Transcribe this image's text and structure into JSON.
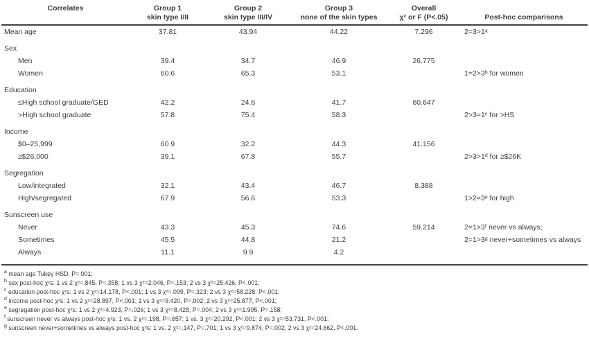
{
  "table": {
    "columns": [
      {
        "line1": "Correlates",
        "line2": ""
      },
      {
        "line1": "Group 1",
        "line2": "skin type I/II"
      },
      {
        "line1": "Group 2",
        "line2": "skin type III/IV"
      },
      {
        "line1": "Group 3",
        "line2": "none of the skin types"
      },
      {
        "line1": "Overall",
        "line2": "χ² or F (P<.05)"
      },
      {
        "line1": "",
        "line2": "Post-hoc comparisons"
      }
    ],
    "rows": [
      {
        "type": "data",
        "indent": 0,
        "label": "Mean age",
        "g1": "37.81",
        "g2": "43.94",
        "g3": "44.22",
        "overall": "7.296",
        "posthoc": "2=3>1ᵃ"
      },
      {
        "type": "section",
        "indent": 0,
        "label": "Sex",
        "g1": "",
        "g2": "",
        "g3": "",
        "overall": "",
        "posthoc": ""
      },
      {
        "type": "data",
        "indent": 1,
        "label": "Men",
        "g1": "39.4",
        "g2": "34.7",
        "g3": "46.9",
        "overall": "26.775",
        "posthoc": ""
      },
      {
        "type": "data",
        "indent": 1,
        "label": "Women",
        "g1": "60.6",
        "g2": "65.3",
        "g3": "53.1",
        "overall": "",
        "posthoc": "1=2>3ᵇ for women"
      },
      {
        "type": "section",
        "indent": 0,
        "label": "Education",
        "g1": "",
        "g2": "",
        "g3": "",
        "overall": "",
        "posthoc": ""
      },
      {
        "type": "data",
        "indent": 1,
        "label": "≤High school graduate/GED",
        "g1": "42.2",
        "g2": "24.6",
        "g3": "41.7",
        "overall": "60.647",
        "posthoc": ""
      },
      {
        "type": "data",
        "indent": 1,
        "label": ">High school graduate",
        "g1": "57.8",
        "g2": "75.4",
        "g3": "58.3",
        "overall": "",
        "posthoc": "2>3=1ᶜ for >HS"
      },
      {
        "type": "section",
        "indent": 0,
        "label": "Income",
        "g1": "",
        "g2": "",
        "g3": "",
        "overall": "",
        "posthoc": ""
      },
      {
        "type": "data",
        "indent": 1,
        "label": "$0–25,999",
        "g1": "60.9",
        "g2": "32.2",
        "g3": "44.3",
        "overall": "41.156",
        "posthoc": ""
      },
      {
        "type": "data",
        "indent": 1,
        "label": "≥$26,000",
        "g1": "39.1",
        "g2": "67.8",
        "g3": "55.7",
        "overall": "",
        "posthoc": "2>3>1ᵈ for ≥$26K"
      },
      {
        "type": "section",
        "indent": 0,
        "label": "Segregation",
        "g1": "",
        "g2": "",
        "g3": "",
        "overall": "",
        "posthoc": ""
      },
      {
        "type": "data",
        "indent": 1,
        "label": "Low/integrated",
        "g1": "32.1",
        "g2": "43.4",
        "g3": "46.7",
        "overall": "8.388",
        "posthoc": ""
      },
      {
        "type": "data",
        "indent": 1,
        "label": "High/segregated",
        "g1": "67.9",
        "g2": "56.6",
        "g3": "53.3",
        "overall": "",
        "posthoc": "1>2=3ᵉ for high"
      },
      {
        "type": "section",
        "indent": 0,
        "label": "Sunscreen use",
        "g1": "",
        "g2": "",
        "g3": "",
        "overall": "",
        "posthoc": ""
      },
      {
        "type": "data",
        "indent": 1,
        "label": "Never",
        "g1": "43.3",
        "g2": "45.3",
        "g3": "74.6",
        "overall": "59.214",
        "posthoc": "2=1>3ᶠ never vs always;"
      },
      {
        "type": "data",
        "indent": 1,
        "label": "Sometimes",
        "g1": "45.5",
        "g2": "44.8",
        "g3": "21.2",
        "overall": "",
        "posthoc": "2=1>3ᵍ never+sometimes vs always"
      },
      {
        "type": "data",
        "indent": 1,
        "label": "Always",
        "g1": "11.1",
        "g2": "9.9",
        "g3": "4.2",
        "overall": "",
        "posthoc": ""
      }
    ],
    "footnotes": [
      {
        "sup": "a",
        "text": "mean age Tukey HSD, P=.001;"
      },
      {
        "sup": "b",
        "text": "sex post-hoc χ²s: 1 vs 2 χ²=.845, P=.358; 1 vs 3 χ²=2.046, P=.153; 2 vs 3 χ²=25.426, P<.001;"
      },
      {
        "sup": "c",
        "text": "education post-hoc χ²s: 1 vs 2 χ²=14.178, P<.001; 1 vs 3 χ²=.099, P=.323; 2 vs 3 χ²=58.228, P<.001;"
      },
      {
        "sup": "d",
        "text": "income post-hoc χ²s: 1 vs 2 χ²=28.897, P<.001; 1 vs 3 χ²=9.420, P=.002; 2 vs 3 χ²=25.877, P<.001;"
      },
      {
        "sup": "e",
        "text": "segregation post-hoc χ²s: 1 vs 2 χ²=4.923, P=.026; 1 vs 3 χ²=8.428, P=.004; 2 vs 3 χ²=1.995, P=.158;"
      },
      {
        "sup": "f",
        "text": "sunscreen never vs always post-hoc χ²s: 1 vs. 2 χ²=.198, P=.657; 1 vs. 3 χ²=20.292, P<.001; 2 vs 3 χ²=53.731, P<.001;"
      },
      {
        "sup": "g",
        "text": "sunscreen never+sometimes vs always post-hoc χ²s: 1 vs. 2 χ²=.147, P=.701; 1 vs 3 χ²=9.874, P=.002; 2 vs 3 χ²=24.662, P<.001."
      }
    ]
  }
}
